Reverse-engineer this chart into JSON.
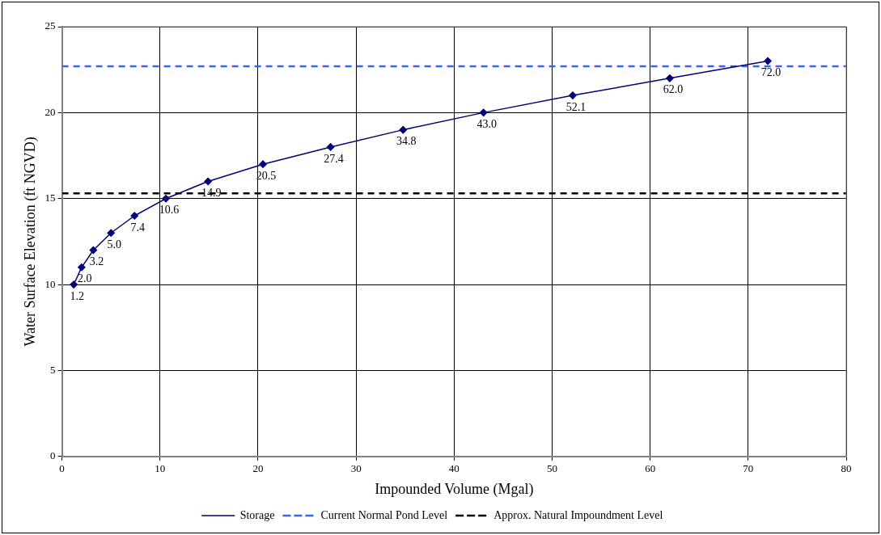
{
  "chart_data": {
    "type": "line",
    "xlabel": "Impounded Volume (Mgal)",
    "ylabel": "Water Surface Elevation (ft NGVD)",
    "xlim": [
      0,
      80
    ],
    "xticks": [
      0,
      10,
      20,
      30,
      40,
      50,
      60,
      70,
      80
    ],
    "ylim": [
      0,
      25
    ],
    "yticks": [
      0,
      5,
      10,
      15,
      20,
      25
    ],
    "grid": true,
    "legend": "bottom",
    "marker": "diamond",
    "line_style": "solid",
    "series": [
      {
        "name": "Storage",
        "color": "#000080",
        "x": [
          1.2,
          2.0,
          3.2,
          5.0,
          7.4,
          10.6,
          14.9,
          20.5,
          27.4,
          34.8,
          43.0,
          52.1,
          62.0,
          72.0
        ],
        "values": [
          10,
          11,
          12,
          13,
          14,
          15,
          16,
          17,
          18,
          19,
          20,
          21,
          22,
          23
        ]
      }
    ],
    "annotations": [
      {
        "text": "1.2",
        "x": 1.2,
        "y": 10
      },
      {
        "text": "2.0",
        "x": 2.0,
        "y": 11
      },
      {
        "text": "3.2",
        "x": 3.2,
        "y": 12
      },
      {
        "text": "5.0",
        "x": 5.0,
        "y": 13
      },
      {
        "text": "7.4",
        "x": 7.4,
        "y": 14
      },
      {
        "text": "10.6",
        "x": 10.6,
        "y": 15
      },
      {
        "text": "14.9",
        "x": 14.9,
        "y": 16
      },
      {
        "text": "20.5",
        "x": 20.5,
        "y": 17
      },
      {
        "text": "27.4",
        "x": 27.4,
        "y": 18
      },
      {
        "text": "34.8",
        "x": 34.8,
        "y": 19
      },
      {
        "text": "43.0",
        "x": 43.0,
        "y": 20
      },
      {
        "text": "52.1",
        "x": 52.1,
        "y": 21
      },
      {
        "text": "62.0",
        "x": 62.0,
        "y": 22
      },
      {
        "text": "72.0",
        "x": 72.0,
        "y": 23
      }
    ],
    "ref_lines": [
      {
        "axis": "y",
        "value": 22.7,
        "label": "Current Normal Pond Level",
        "color": "#3366ff",
        "line_style": "dashed"
      },
      {
        "axis": "y",
        "value": 15.3,
        "label": "Approx. Natural Impoundment Level",
        "color": "#000000",
        "line_style": "dashed"
      }
    ]
  }
}
